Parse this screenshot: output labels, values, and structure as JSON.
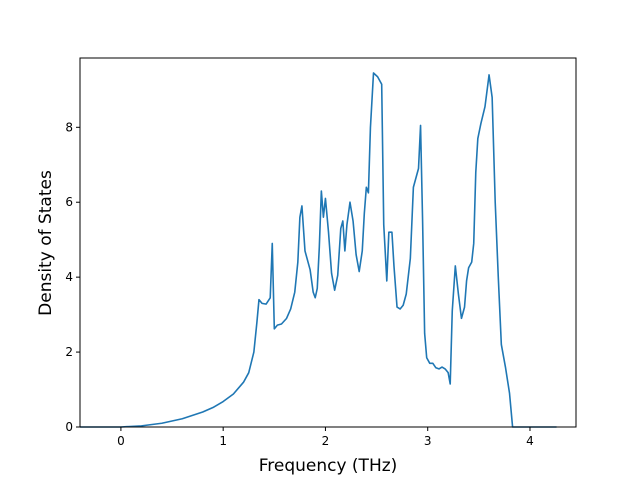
{
  "chart_data": {
    "type": "line",
    "title": "",
    "xlabel": "Frequency (THz)",
    "ylabel": "Density of States",
    "xlim": [
      -0.4,
      4.45
    ],
    "ylim": [
      0,
      9.85
    ],
    "xticks": [
      0,
      1,
      2,
      3,
      4
    ],
    "yticks": [
      0,
      2,
      4,
      6,
      8
    ],
    "grid": false,
    "legend": "none",
    "series": [
      {
        "color": "#1f77b4",
        "x": [
          -0.4,
          -0.2,
          0.0,
          0.2,
          0.4,
          0.6,
          0.8,
          0.9,
          1.0,
          1.1,
          1.2,
          1.25,
          1.3,
          1.33,
          1.35,
          1.38,
          1.42,
          1.46,
          1.48,
          1.5,
          1.53,
          1.57,
          1.62,
          1.66,
          1.7,
          1.73,
          1.75,
          1.77,
          1.8,
          1.85,
          1.88,
          1.9,
          1.92,
          1.94,
          1.96,
          1.98,
          2.0,
          2.03,
          2.06,
          2.09,
          2.12,
          2.15,
          2.17,
          2.19,
          2.21,
          2.24,
          2.27,
          2.3,
          2.33,
          2.36,
          2.38,
          2.4,
          2.42,
          2.44,
          2.47,
          2.51,
          2.55,
          2.57,
          2.6,
          2.62,
          2.65,
          2.67,
          2.7,
          2.73,
          2.76,
          2.79,
          2.83,
          2.86,
          2.89,
          2.91,
          2.93,
          2.95,
          2.97,
          2.99,
          3.02,
          3.05,
          3.08,
          3.11,
          3.14,
          3.17,
          3.2,
          3.22,
          3.24,
          3.27,
          3.3,
          3.33,
          3.36,
          3.38,
          3.4,
          3.43,
          3.45,
          3.47,
          3.49,
          3.52,
          3.56,
          3.6,
          3.63,
          3.66,
          3.69,
          3.72,
          3.76,
          3.8,
          3.83,
          3.85,
          3.87,
          3.89,
          4.0,
          4.2,
          4.26
        ],
        "values": [
          0.0,
          0.0,
          0.0,
          0.03,
          0.1,
          0.22,
          0.4,
          0.52,
          0.68,
          0.88,
          1.2,
          1.45,
          2.0,
          2.8,
          3.4,
          3.3,
          3.28,
          3.45,
          4.9,
          2.62,
          2.72,
          2.75,
          2.9,
          3.15,
          3.6,
          4.4,
          5.6,
          5.9,
          4.7,
          4.2,
          3.6,
          3.45,
          3.7,
          4.8,
          6.3,
          5.6,
          6.1,
          5.2,
          4.1,
          3.65,
          4.05,
          5.3,
          5.5,
          4.7,
          5.4,
          6.0,
          5.5,
          4.6,
          4.15,
          4.7,
          5.7,
          6.4,
          6.25,
          8.0,
          9.45,
          9.35,
          9.15,
          5.4,
          3.9,
          5.2,
          5.2,
          4.3,
          3.2,
          3.15,
          3.25,
          3.55,
          4.5,
          6.4,
          6.7,
          6.9,
          8.05,
          5.5,
          2.5,
          1.85,
          1.7,
          1.7,
          1.58,
          1.55,
          1.6,
          1.55,
          1.45,
          1.15,
          3.1,
          4.3,
          3.55,
          2.9,
          3.2,
          3.9,
          4.25,
          4.4,
          4.9,
          6.8,
          7.7,
          8.1,
          8.55,
          9.4,
          8.8,
          6.0,
          4.0,
          2.2,
          1.6,
          0.9,
          0.0,
          0.0,
          0.0,
          0.0,
          0.0,
          0.0,
          0.0
        ]
      }
    ]
  }
}
